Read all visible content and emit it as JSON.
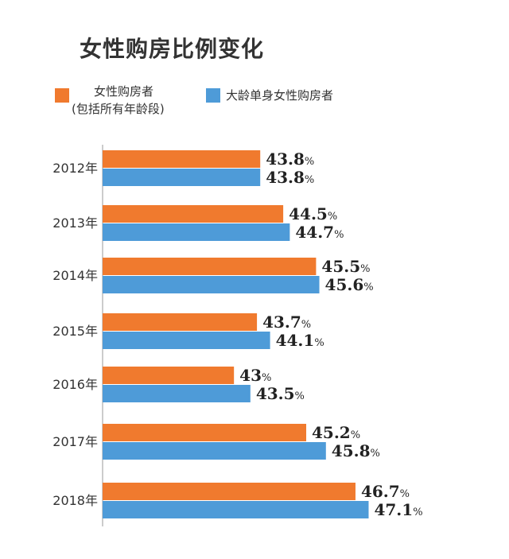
{
  "chart_data": {
    "type": "bar",
    "orientation": "horizontal",
    "title": "女性购房比例变化",
    "categories": [
      "2012年",
      "2013年",
      "2014年",
      "2015年",
      "2016年",
      "2017年",
      "2018年"
    ],
    "series": [
      {
        "name": "女性购房者",
        "name_line2": "(包括所有年龄段)",
        "color": "#F07A2E",
        "values": [
          43.8,
          44.5,
          45.5,
          43.7,
          43,
          45.2,
          46.7
        ],
        "labels": [
          "43.8",
          "44.5",
          "45.5",
          "43.7",
          "43",
          "45.2",
          "46.7"
        ]
      },
      {
        "name": "大龄单身女性购房者",
        "color": "#4E9BD8",
        "values": [
          43.8,
          44.7,
          45.6,
          44.1,
          43.5,
          45.8,
          47.1
        ],
        "labels": [
          "43.8",
          "44.7",
          "45.6",
          "44.1",
          "43.5",
          "45.8",
          "47.1"
        ]
      }
    ],
    "value_suffix": "%",
    "legend_position": "top-left",
    "grid": false,
    "xlim": [
      39,
      47.5
    ]
  }
}
